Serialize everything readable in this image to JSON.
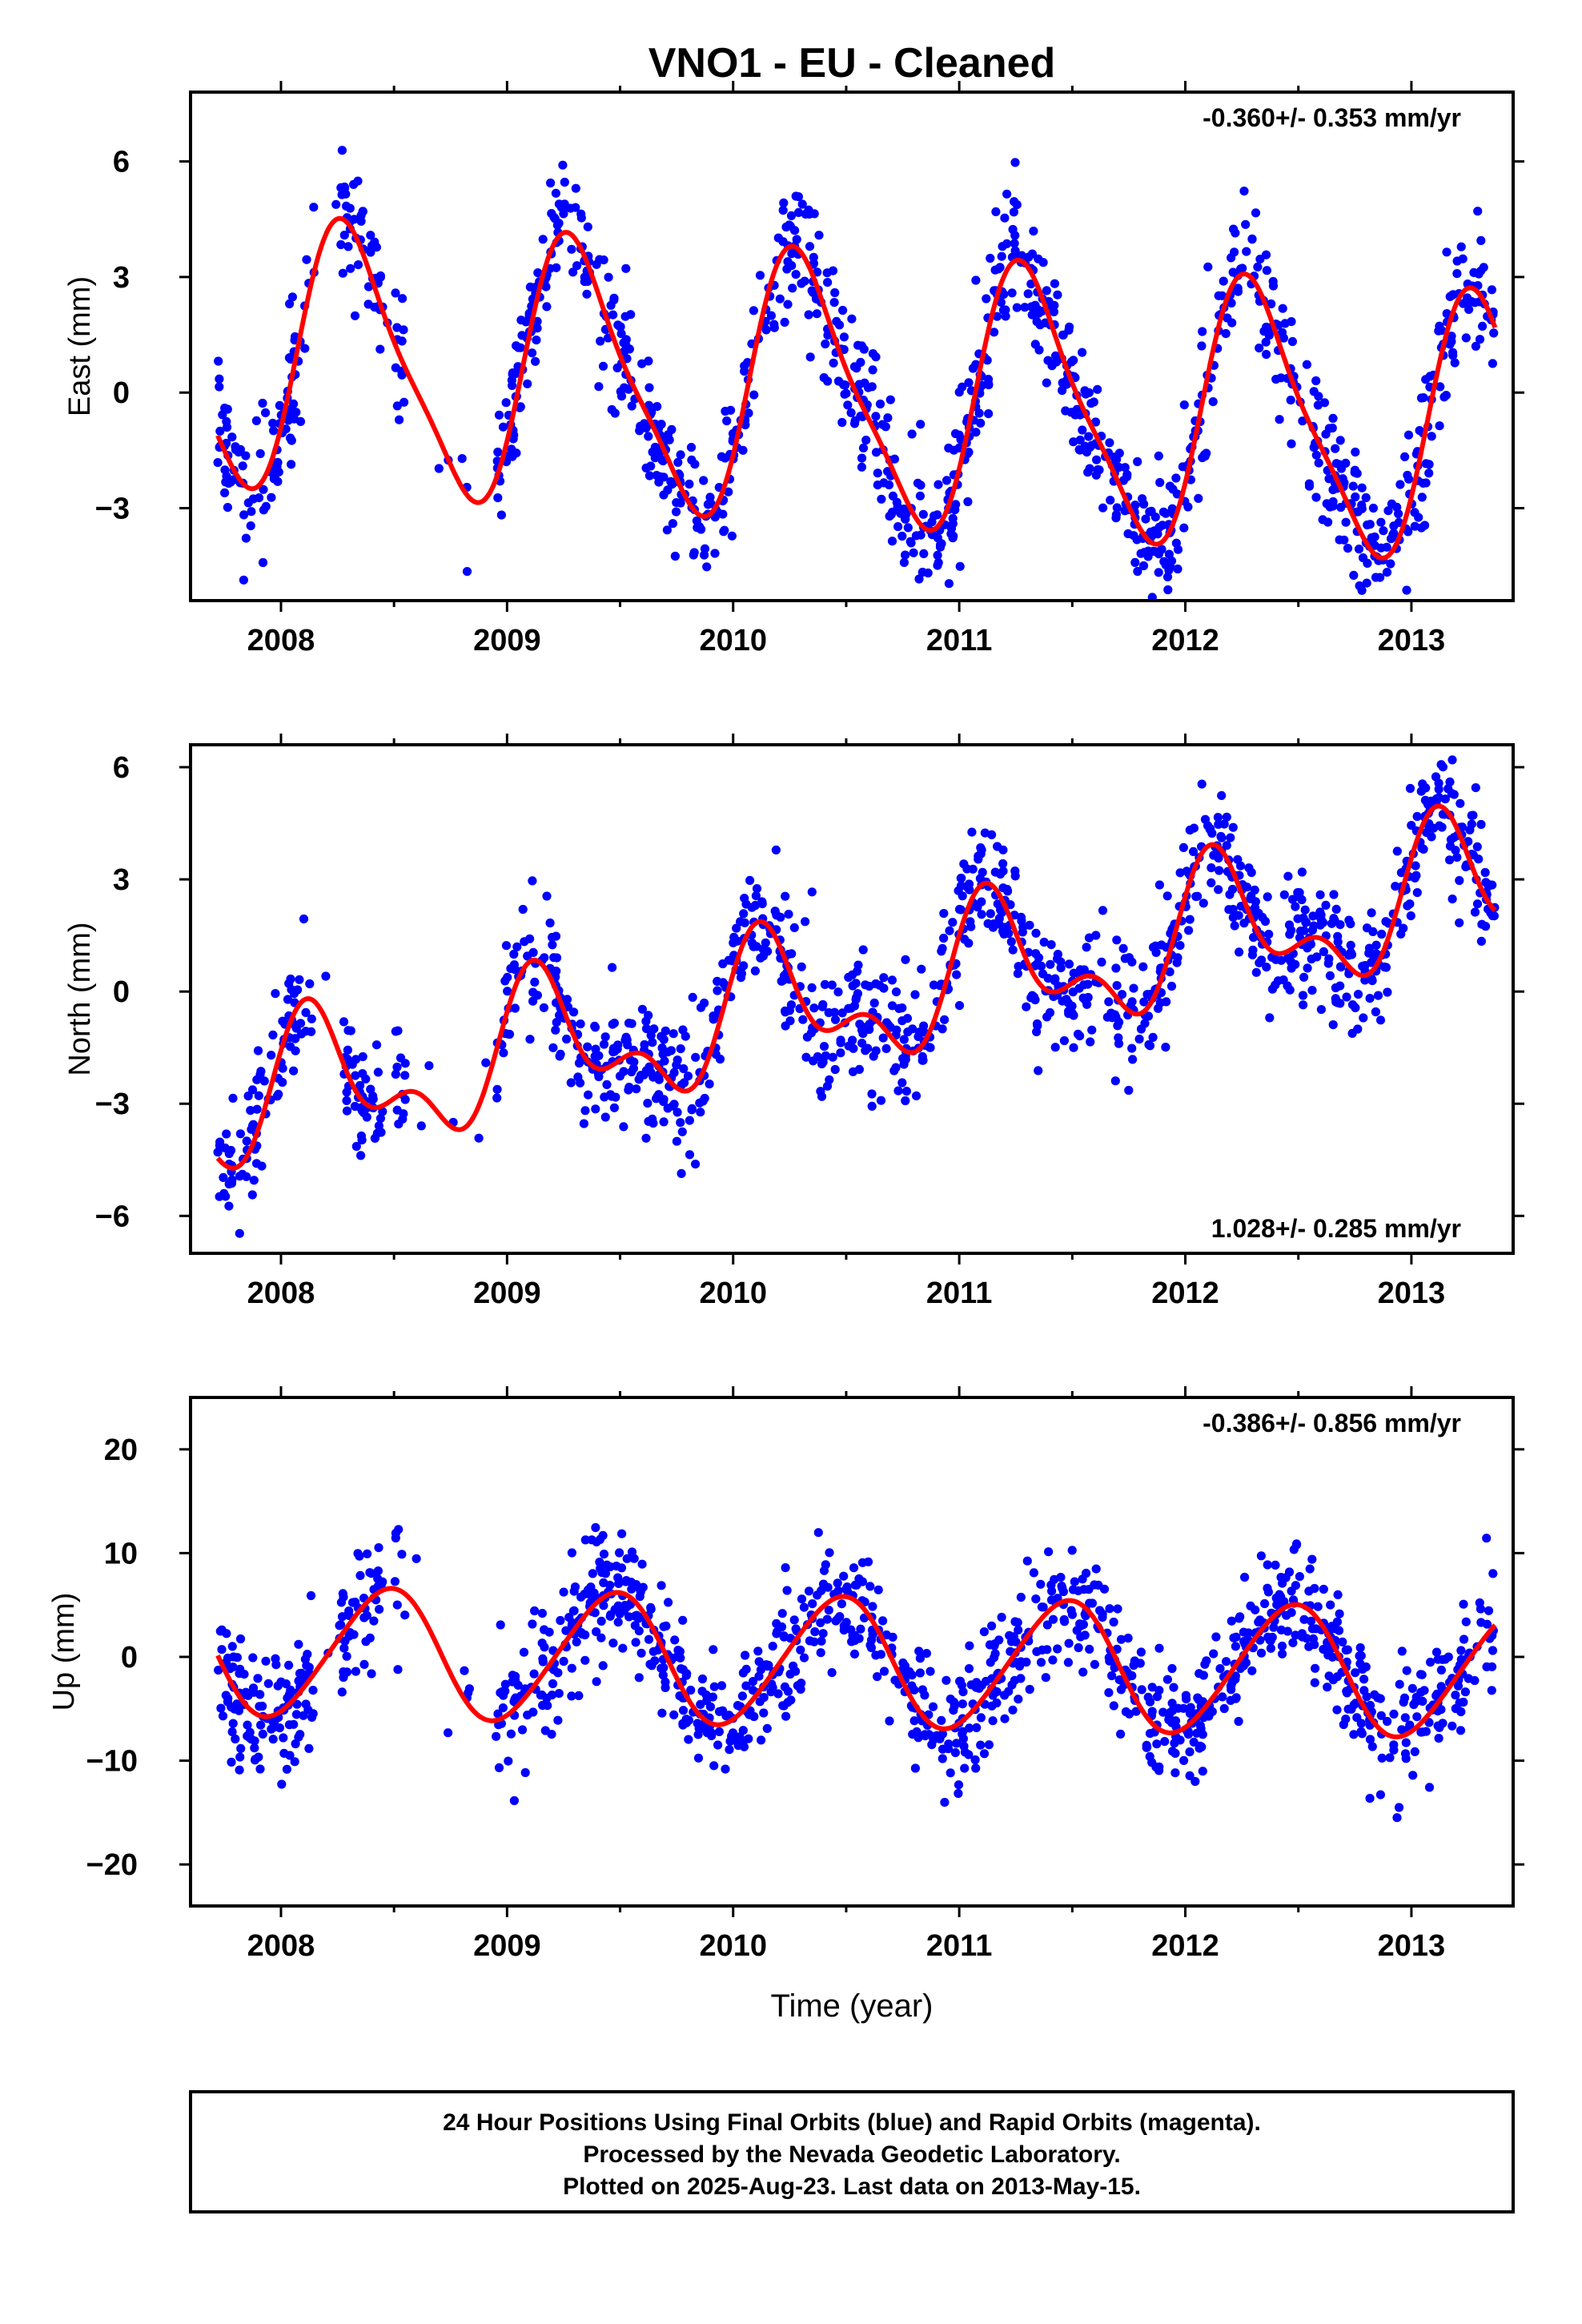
{
  "title": "VNO1  - EU - Cleaned",
  "xlabel": "Time (year)",
  "footer": [
    "24 Hour Positions Using Final Orbits (blue) and Rapid Orbits (magenta).",
    "Processed by the Nevada Geodetic Laboratory.",
    "Plotted on 2025-Aug-23. Last data on 2013-May-15."
  ],
  "colors": {
    "points": "#0000ff",
    "model": "#ff0000",
    "frame": "#000000"
  },
  "chart_data": [
    {
      "type": "scatter",
      "ylabel": "East (mm)",
      "rate_text": "-0.360+/- 0.353 mm/yr",
      "xlim": [
        2007.6,
        2013.45
      ],
      "ylim": [
        -5.4,
        7.8
      ],
      "xticks": [
        2008,
        2009,
        2010,
        2011,
        2012,
        2013
      ],
      "xtick_labels": [
        "2008",
        "2009",
        "2010",
        "2011",
        "2012",
        "2013"
      ],
      "yticks": [
        -3,
        0,
        3,
        6
      ],
      "ytick_labels": [
        "−3",
        "0",
        "3",
        "6"
      ],
      "model": {
        "offset": 0.0,
        "trend": -0.36,
        "ref_year": 2010.5,
        "annual_sin": 3.1,
        "annual_cos": -1.2,
        "semiannual_sin": 0.4,
        "semiannual_cos": -0.6
      },
      "scatter": 0.9,
      "point_count": 1350,
      "gaps": [
        [
          2008.15,
          2008.25
        ],
        [
          2008.45,
          2008.5
        ],
        [
          2008.55,
          2008.95
        ]
      ]
    },
    {
      "type": "scatter",
      "ylabel": "North (mm)",
      "rate_text": "1.028+/- 0.285 mm/yr",
      "xlim": [
        2007.6,
        2013.45
      ],
      "ylim": [
        -7.0,
        6.6
      ],
      "xticks": [
        2008,
        2009,
        2010,
        2011,
        2012,
        2013
      ],
      "xtick_labels": [
        "2008",
        "2009",
        "2010",
        "2011",
        "2012",
        "2013"
      ],
      "yticks": [
        -6,
        -3,
        0,
        3,
        6
      ],
      "ytick_labels": [
        "−6",
        "−3",
        "0",
        "3",
        "6"
      ],
      "model": {
        "offset": -0.2,
        "trend": 1.03,
        "ref_year": 2010.5,
        "annual_sin": 1.3,
        "annual_cos": 0.9,
        "semiannual_sin": 0.9,
        "semiannual_cos": 0.3
      },
      "scatter": 0.85,
      "point_count": 1350,
      "gaps": [
        [
          2008.15,
          2008.25
        ],
        [
          2008.45,
          2008.5
        ],
        [
          2008.55,
          2008.95
        ]
      ]
    },
    {
      "type": "scatter",
      "ylabel": "Up (mm)",
      "rate_text": "-0.386+/- 0.856 mm/yr",
      "xlim": [
        2007.6,
        2013.45
      ],
      "ylim": [
        -24.0,
        25.0
      ],
      "xticks": [
        2008,
        2009,
        2010,
        2011,
        2012,
        2013
      ],
      "xtick_labels": [
        "2008",
        "2009",
        "2010",
        "2011",
        "2012",
        "2013"
      ],
      "yticks": [
        -20,
        -10,
        0,
        10,
        20
      ],
      "ytick_labels": [
        "−20",
        "−10",
        "0",
        "10",
        "20"
      ],
      "model": {
        "offset": -0.5,
        "trend": -0.39,
        "ref_year": 2010.5,
        "annual_sin": 1.5,
        "annual_cos": -6.0,
        "semiannual_sin": 0.5,
        "semiannual_cos": 0.3
      },
      "scatter": 3.0,
      "point_count": 1350,
      "gaps": [
        [
          2008.15,
          2008.25
        ],
        [
          2008.45,
          2008.5
        ],
        [
          2008.55,
          2008.95
        ]
      ]
    }
  ]
}
